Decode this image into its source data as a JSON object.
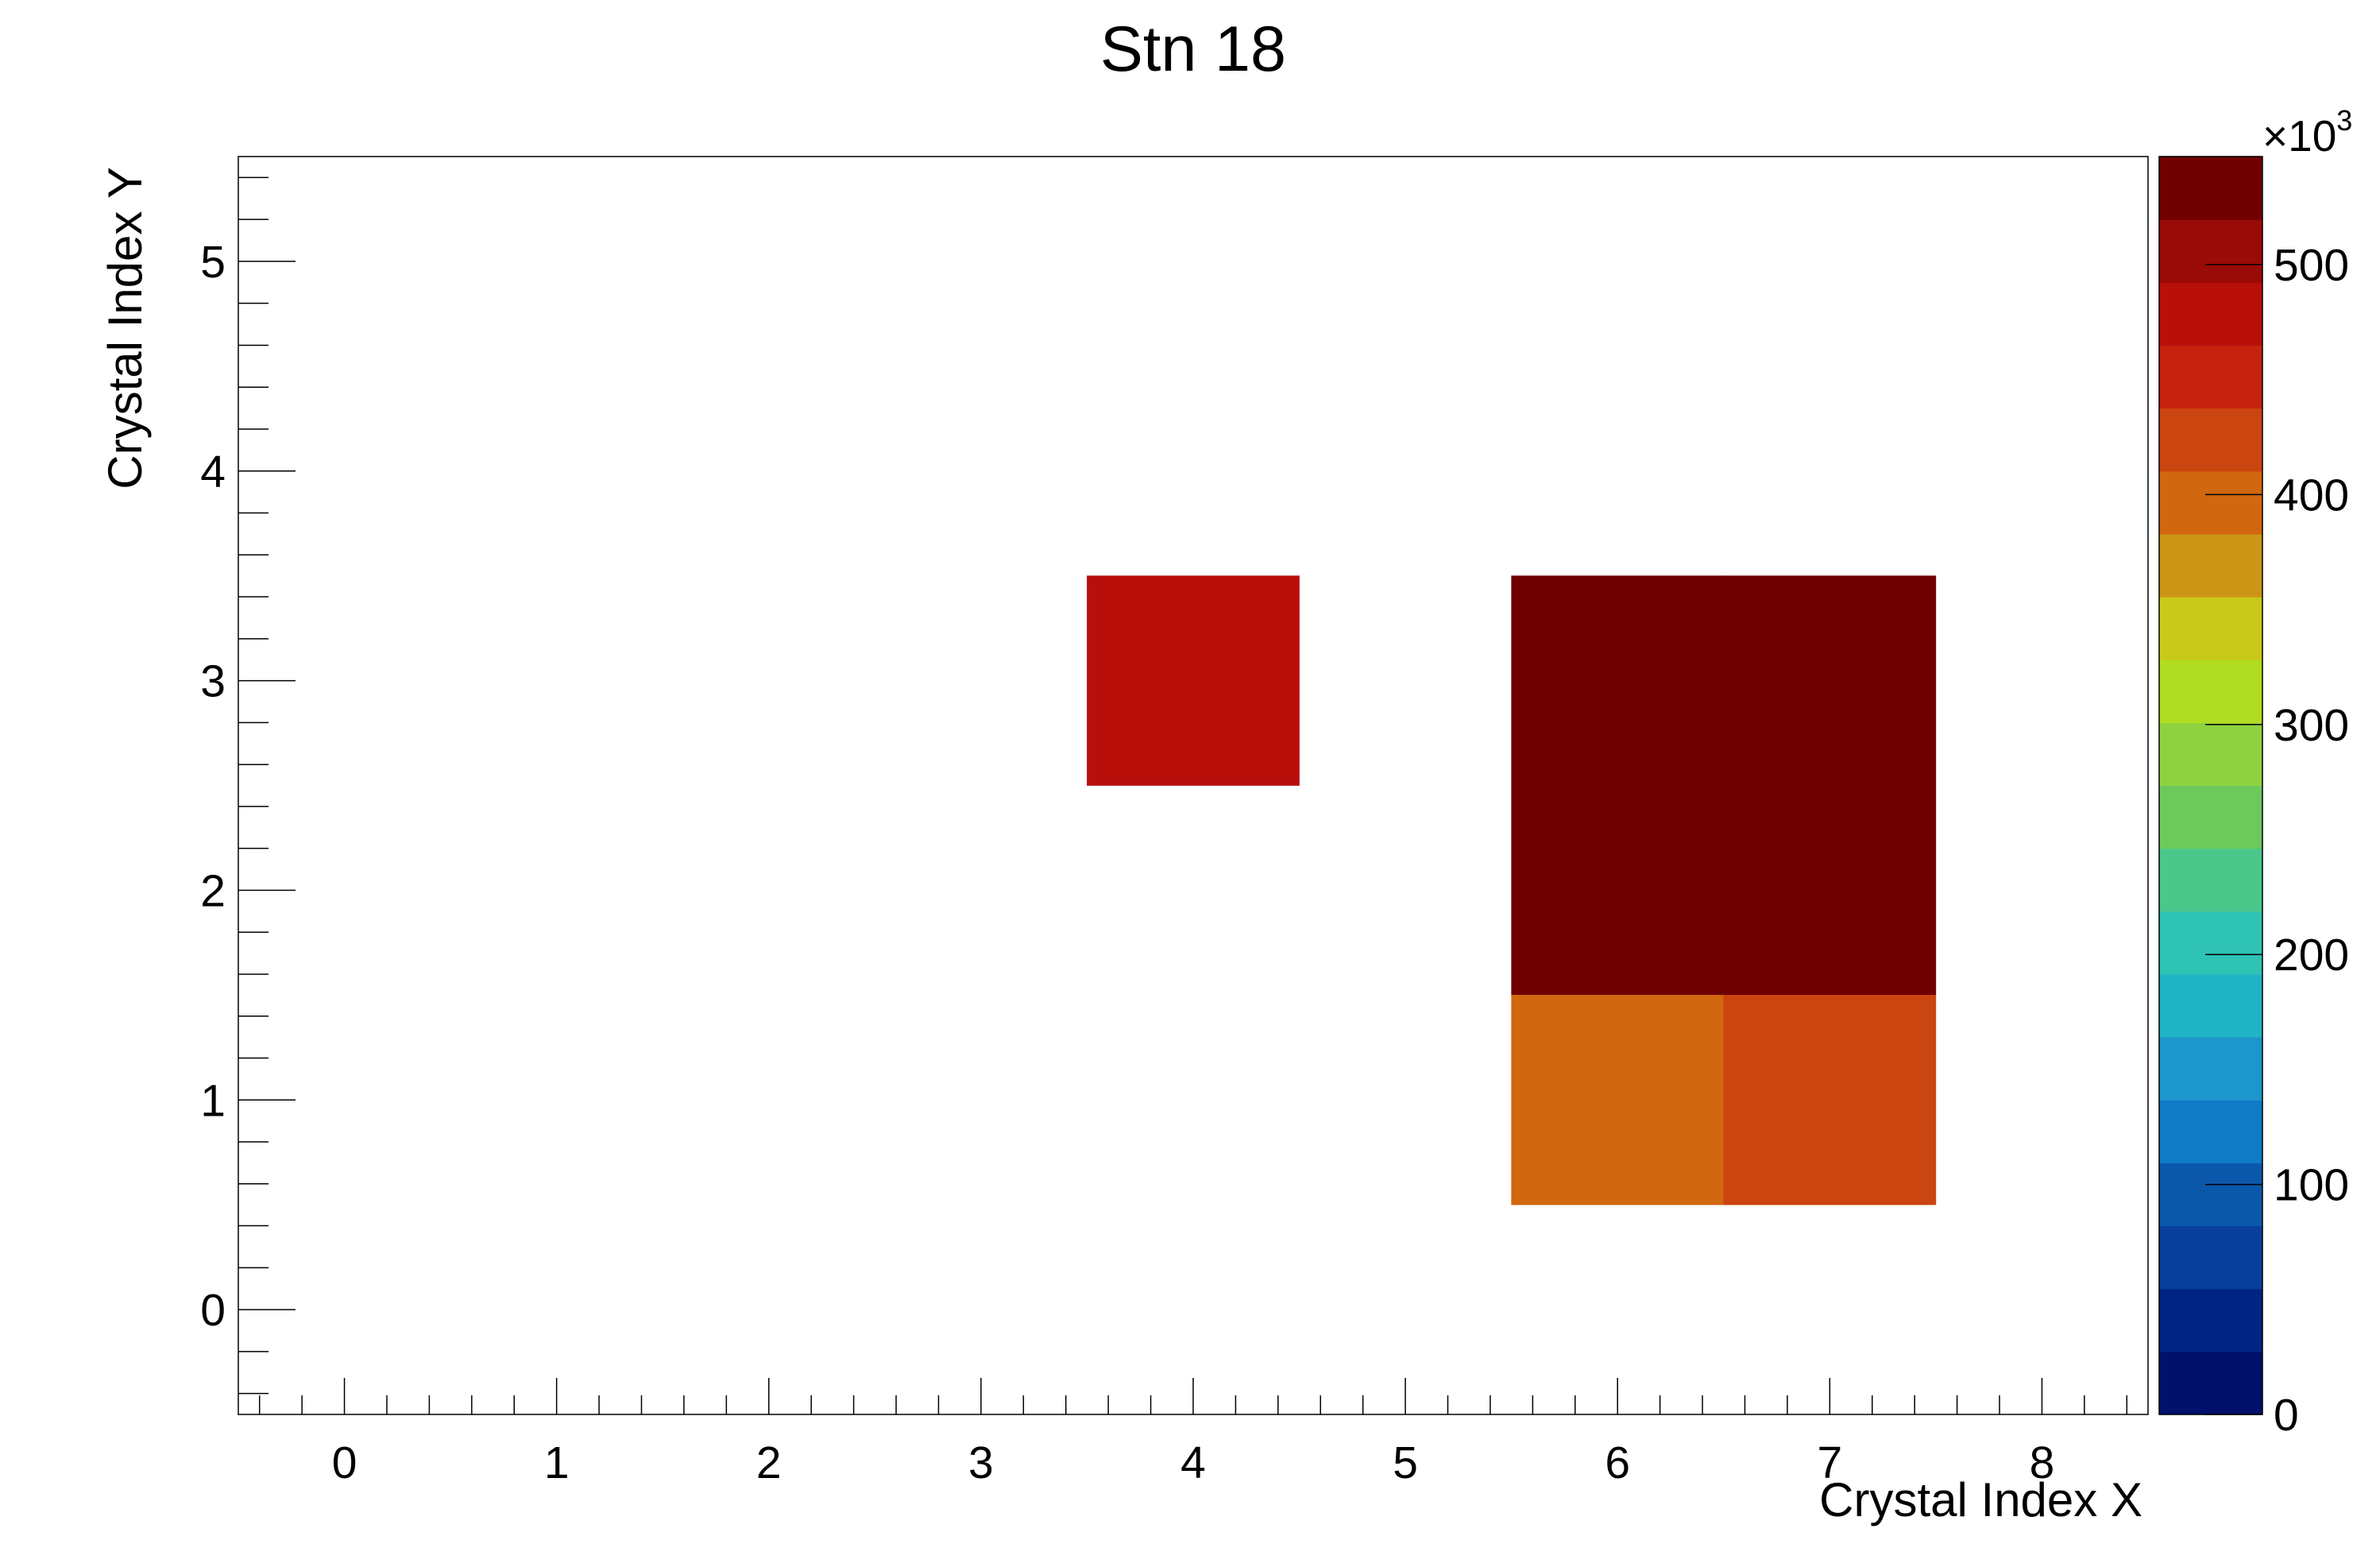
{
  "chart_data": {
    "type": "heatmap",
    "title": "Stn 18",
    "xlabel": "Crystal Index X",
    "ylabel": "Crystal Index Y",
    "xlim": [
      -0.5,
      8.5
    ],
    "ylim": [
      -0.5,
      5.5
    ],
    "x_ticks": [
      "0",
      "1",
      "2",
      "3",
      "4",
      "5",
      "6",
      "7",
      "8"
    ],
    "y_ticks": [
      "0",
      "1",
      "2",
      "3",
      "4",
      "5"
    ],
    "cells": [
      {
        "x": 4,
        "y": 3,
        "value": 470000
      },
      {
        "x": 6,
        "y": 2,
        "value": 545000
      },
      {
        "x": 7,
        "y": 2,
        "value": 545000
      },
      {
        "x": 6,
        "y": 3,
        "value": 545000
      },
      {
        "x": 7,
        "y": 3,
        "value": 545000
      },
      {
        "x": 6,
        "y": 1,
        "value": 395000
      },
      {
        "x": 7,
        "y": 1,
        "value": 425000
      }
    ],
    "colorbar": {
      "min": 0,
      "max": 547000,
      "multiplier_label": "×10",
      "multiplier_exp": "3",
      "tick_values": [
        0,
        100000,
        200000,
        300000,
        400000,
        500000
      ],
      "tick_labels": [
        "0",
        "100",
        "200",
        "300",
        "400",
        "500"
      ],
      "colors": [
        "#00106b",
        "#002482",
        "#073f9b",
        "#0b58ab",
        "#0f7ac6",
        "#1c96cc",
        "#21b3c6",
        "#2ec3b5",
        "#4ac78b",
        "#6cca5d",
        "#8fd23f",
        "#b0dc22",
        "#c9c91a",
        "#cc9515",
        "#d1670f",
        "#cb4510",
        "#c5230d",
        "#b80f0b",
        "#9a0a07",
        "#700000"
      ]
    }
  }
}
